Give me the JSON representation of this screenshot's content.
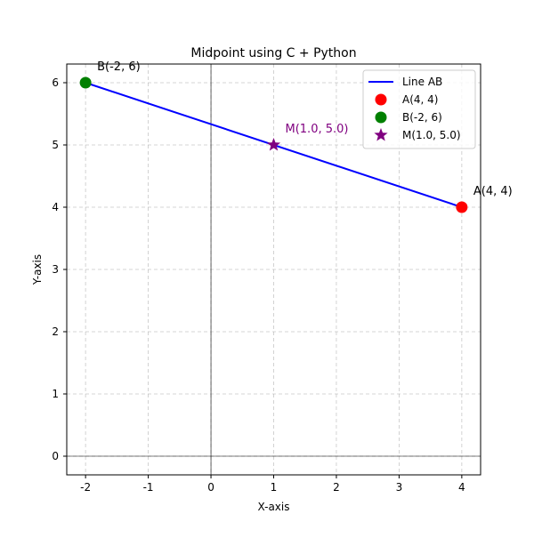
{
  "chart_data": {
    "type": "line",
    "title": "Midpoint using C + Python",
    "xlabel": "X-axis",
    "ylabel": "Y-axis",
    "xlim": [
      -2.3,
      4.3
    ],
    "ylim": [
      -0.3,
      6.3
    ],
    "xticks": [
      -2,
      -1,
      0,
      1,
      2,
      3,
      4
    ],
    "yticks": [
      0,
      1,
      2,
      3,
      4,
      5,
      6
    ],
    "grid": true,
    "legend_position": "top-right",
    "reference_lines": {
      "x": 0,
      "y": 0
    },
    "line": {
      "name": "Line AB",
      "color": "#0000ff",
      "x": [
        -2,
        4
      ],
      "y": [
        6,
        4
      ]
    },
    "points": [
      {
        "label": "A(4, 4)",
        "legend": "A(4, 4)",
        "x": 4,
        "y": 4,
        "color": "#ff0000",
        "marker": "circle"
      },
      {
        "label": "B(-2, 6)",
        "legend": "B(-2, 6)",
        "x": -2,
        "y": 6,
        "color": "#008000",
        "marker": "circle"
      },
      {
        "label": "M(1.0, 5.0)",
        "legend": "M(1.0, 5.0)",
        "x": 1,
        "y": 5,
        "color": "#800080",
        "marker": "star"
      }
    ]
  }
}
